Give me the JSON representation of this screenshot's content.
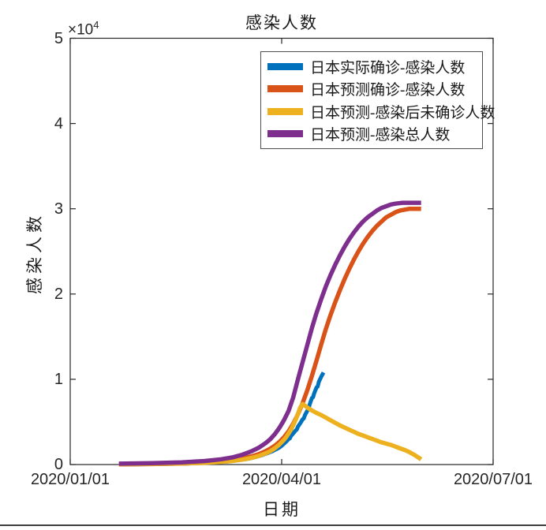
{
  "window": {
    "background": "#ffffff"
  },
  "chart_data": {
    "type": "line",
    "title": "感染人数",
    "xlabel": "日期",
    "ylabel": "感染人数",
    "y_multiplier": {
      "base": "×10",
      "exp": "4"
    },
    "x_unit": "days since 2020/01/01",
    "xlim_days": [
      0,
      182
    ],
    "ylim": [
      0,
      50000
    ],
    "grid": false,
    "legend_position": "upper-right-inside",
    "axis_color": "#262626",
    "frame_box": true,
    "x_ticks": [
      {
        "day": 0,
        "label": "2020/01/01"
      },
      {
        "day": 91,
        "label": "2020/04/01"
      },
      {
        "day": 182,
        "label": "2020/07/01"
      }
    ],
    "y_ticks": [
      {
        "value": 0,
        "label": "0"
      },
      {
        "value": 10000,
        "label": "1"
      },
      {
        "value": 20000,
        "label": "2"
      },
      {
        "value": 30000,
        "label": "3"
      },
      {
        "value": 40000,
        "label": "4"
      },
      {
        "value": 50000,
        "label": "5"
      }
    ],
    "series": [
      {
        "name": "日本实际确诊-感染人数",
        "color": "#0072BD",
        "line_width": 5,
        "points": [
          [
            21,
            20
          ],
          [
            30,
            40
          ],
          [
            40,
            70
          ],
          [
            50,
            120
          ],
          [
            60,
            220
          ],
          [
            65,
            300
          ],
          [
            68,
            360
          ],
          [
            71,
            450
          ],
          [
            74,
            570
          ],
          [
            76,
            650
          ],
          [
            78,
            760
          ],
          [
            80,
            900
          ],
          [
            82,
            1050
          ],
          [
            84,
            1250
          ],
          [
            86,
            1450
          ],
          [
            87,
            1550
          ],
          [
            88,
            1700
          ],
          [
            89,
            1850
          ],
          [
            90,
            2000
          ],
          [
            91,
            2200
          ],
          [
            92,
            2450
          ],
          [
            93,
            2700
          ],
          [
            94,
            3000
          ],
          [
            94.5,
            3060
          ],
          [
            95,
            3350
          ],
          [
            96,
            3650
          ],
          [
            97,
            4000
          ],
          [
            97.5,
            4100
          ],
          [
            98,
            4450
          ],
          [
            99,
            4850
          ],
          [
            100,
            5300
          ],
          [
            100.5,
            5400
          ],
          [
            101,
            5800
          ],
          [
            102,
            6300
          ],
          [
            102.5,
            6450
          ],
          [
            103,
            7000
          ],
          [
            104,
            7800
          ],
          [
            104.5,
            7900
          ],
          [
            105,
            8350
          ],
          [
            106,
            9050
          ],
          [
            106.5,
            9150
          ],
          [
            107,
            9700
          ],
          [
            108,
            10300
          ],
          [
            109,
            10800
          ]
        ]
      },
      {
        "name": "日本预测确诊-感染人数",
        "color": "#D95319",
        "line_width": 5.5,
        "points": [
          [
            21,
            30
          ],
          [
            35,
            60
          ],
          [
            48,
            120
          ],
          [
            58,
            220
          ],
          [
            65,
            350
          ],
          [
            70,
            500
          ],
          [
            74,
            700
          ],
          [
            78,
            950
          ],
          [
            81,
            1200
          ],
          [
            84,
            1550
          ],
          [
            86,
            1850
          ],
          [
            88,
            2200
          ],
          [
            90,
            2650
          ],
          [
            92,
            3200
          ],
          [
            94,
            3900
          ],
          [
            96,
            4800
          ],
          [
            98,
            5900
          ],
          [
            100,
            7200
          ],
          [
            102,
            8700
          ],
          [
            104,
            10400
          ],
          [
            106,
            12200
          ],
          [
            108,
            14100
          ],
          [
            110,
            15900
          ],
          [
            112,
            17500
          ],
          [
            114,
            19000
          ],
          [
            116,
            20400
          ],
          [
            118,
            21700
          ],
          [
            120,
            22900
          ],
          [
            122,
            24000
          ],
          [
            124,
            25000
          ],
          [
            126,
            25900
          ],
          [
            128,
            26700
          ],
          [
            130,
            27400
          ],
          [
            132,
            28000
          ],
          [
            134,
            28500
          ],
          [
            136,
            29000
          ],
          [
            138,
            29300
          ],
          [
            140,
            29600
          ],
          [
            142,
            29800
          ],
          [
            144,
            29900
          ],
          [
            146,
            30000
          ],
          [
            148,
            30000
          ],
          [
            151,
            30000
          ]
        ]
      },
      {
        "name": "日本预测-感染后未确诊人数",
        "color": "#EDB120",
        "line_width": 5.5,
        "points": [
          [
            21,
            50
          ],
          [
            35,
            80
          ],
          [
            48,
            130
          ],
          [
            58,
            210
          ],
          [
            65,
            310
          ],
          [
            70,
            430
          ],
          [
            74,
            570
          ],
          [
            78,
            780
          ],
          [
            81,
            1000
          ],
          [
            84,
            1300
          ],
          [
            86,
            1550
          ],
          [
            88,
            1900
          ],
          [
            90,
            2350
          ],
          [
            92,
            2900
          ],
          [
            93,
            3250
          ],
          [
            94,
            3650
          ],
          [
            95,
            4100
          ],
          [
            96,
            4650
          ],
          [
            97,
            5250
          ],
          [
            98,
            5950
          ],
          [
            99,
            6700
          ],
          [
            100,
            7100
          ],
          [
            101,
            6900
          ],
          [
            102,
            6700
          ],
          [
            103,
            6500
          ],
          [
            104,
            6350
          ],
          [
            105,
            6200
          ],
          [
            106,
            6050
          ],
          [
            108,
            5800
          ],
          [
            110,
            5500
          ],
          [
            112,
            5200
          ],
          [
            114,
            4900
          ],
          [
            116,
            4600
          ],
          [
            118,
            4350
          ],
          [
            120,
            4100
          ],
          [
            122,
            3850
          ],
          [
            124,
            3600
          ],
          [
            126,
            3400
          ],
          [
            128,
            3200
          ],
          [
            130,
            3000
          ],
          [
            132,
            2800
          ],
          [
            134,
            2600
          ],
          [
            136,
            2450
          ],
          [
            138,
            2300
          ],
          [
            140,
            2100
          ],
          [
            142,
            1900
          ],
          [
            144,
            1700
          ],
          [
            146,
            1450
          ],
          [
            148,
            1150
          ],
          [
            150,
            800
          ],
          [
            151,
            600
          ]
        ]
      },
      {
        "name": "日本预测-感染总人数",
        "color": "#7E2F8E",
        "line_width": 5.5,
        "points": [
          [
            21,
            100
          ],
          [
            35,
            160
          ],
          [
            48,
            260
          ],
          [
            58,
            420
          ],
          [
            65,
            620
          ],
          [
            70,
            850
          ],
          [
            74,
            1150
          ],
          [
            78,
            1550
          ],
          [
            81,
            1950
          ],
          [
            84,
            2500
          ],
          [
            86,
            2950
          ],
          [
            88,
            3550
          ],
          [
            90,
            4300
          ],
          [
            92,
            5200
          ],
          [
            94,
            6300
          ],
          [
            96,
            7900
          ],
          [
            98,
            10000
          ],
          [
            100,
            12000
          ],
          [
            102,
            14000
          ],
          [
            104,
            16000
          ],
          [
            106,
            17800
          ],
          [
            108,
            19400
          ],
          [
            110,
            20900
          ],
          [
            112,
            22200
          ],
          [
            114,
            23400
          ],
          [
            116,
            24500
          ],
          [
            118,
            25500
          ],
          [
            120,
            26400
          ],
          [
            122,
            27200
          ],
          [
            124,
            27900
          ],
          [
            126,
            28500
          ],
          [
            128,
            29000
          ],
          [
            130,
            29400
          ],
          [
            132,
            29800
          ],
          [
            134,
            30100
          ],
          [
            136,
            30300
          ],
          [
            138,
            30500
          ],
          [
            140,
            30600
          ],
          [
            143,
            30700
          ],
          [
            146,
            30700
          ],
          [
            149,
            30700
          ],
          [
            151,
            30700
          ]
        ]
      }
    ]
  }
}
